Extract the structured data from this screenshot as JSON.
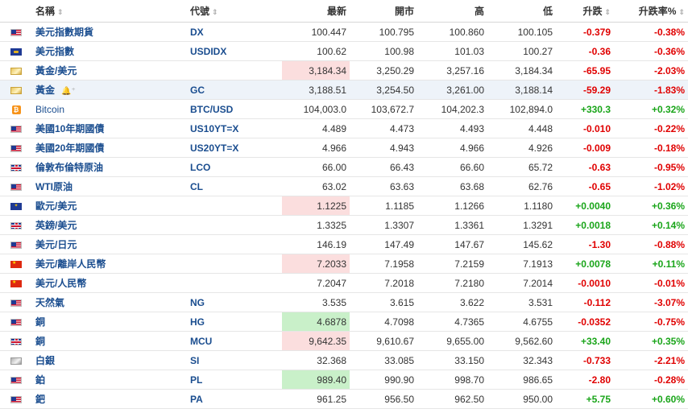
{
  "headers": {
    "name": "名稱",
    "code": "代號",
    "last": "最新",
    "open": "開市",
    "high": "高",
    "low": "低",
    "chg": "升跌",
    "chg_pct": "升跌率%"
  },
  "rows": [
    {
      "flag": "us",
      "name": "美元指數期貨",
      "code": "DX",
      "last": "100.447",
      "open": "100.795",
      "high": "100.860",
      "low": "100.105",
      "chg": "-0.379",
      "chg_pct": "-0.38%",
      "dir": "down",
      "flash": ""
    },
    {
      "flag": "dx",
      "name": "美元指數",
      "code": "USDIDX",
      "last": "100.62",
      "open": "100.98",
      "high": "101.03",
      "low": "100.27",
      "chg": "-0.36",
      "chg_pct": "-0.36%",
      "dir": "down",
      "flash": ""
    },
    {
      "flag": "gold",
      "name": "黃金/美元",
      "code": "",
      "last": "3,184.34",
      "open": "3,250.29",
      "high": "3,257.16",
      "low": "3,184.34",
      "chg": "-65.95",
      "chg_pct": "-2.03%",
      "dir": "down",
      "flash": "red"
    },
    {
      "flag": "gold",
      "name": "黃金",
      "code": "GC",
      "last": "3,188.51",
      "open": "3,254.50",
      "high": "3,261.00",
      "low": "3,188.14",
      "chg": "-59.29",
      "chg_pct": "-1.83%",
      "dir": "down",
      "flash": "",
      "hl": true,
      "bell": "🔔⁺"
    },
    {
      "flag": "btc",
      "name": "Bitcoin",
      "code": "BTC/USD",
      "last": "104,003.0",
      "open": "103,672.7",
      "high": "104,202.3",
      "low": "102,894.0",
      "chg": "+330.3",
      "chg_pct": "+0.32%",
      "dir": "up",
      "flash": "",
      "plain": true
    },
    {
      "flag": "us",
      "name": "美國10年期國債",
      "code": "US10YT=X",
      "last": "4.489",
      "open": "4.473",
      "high": "4.493",
      "low": "4.448",
      "chg": "-0.010",
      "chg_pct": "-0.22%",
      "dir": "down",
      "flash": ""
    },
    {
      "flag": "us",
      "name": "美國20年期國債",
      "code": "US20YT=X",
      "last": "4.966",
      "open": "4.943",
      "high": "4.966",
      "low": "4.926",
      "chg": "-0.009",
      "chg_pct": "-0.18%",
      "dir": "down",
      "flash": ""
    },
    {
      "flag": "uk",
      "name": "倫敦布倫特原油",
      "code": "LCO",
      "last": "66.00",
      "open": "66.43",
      "high": "66.60",
      "low": "65.72",
      "chg": "-0.63",
      "chg_pct": "-0.95%",
      "dir": "down",
      "flash": ""
    },
    {
      "flag": "us",
      "name": "WTI原油",
      "code": "CL",
      "last": "63.02",
      "open": "63.63",
      "high": "63.68",
      "low": "62.76",
      "chg": "-0.65",
      "chg_pct": "-1.02%",
      "dir": "down",
      "flash": ""
    },
    {
      "flag": "eu",
      "name": "歐元/美元",
      "code": "",
      "last": "1.1225",
      "open": "1.1185",
      "high": "1.1266",
      "low": "1.1180",
      "chg": "+0.0040",
      "chg_pct": "+0.36%",
      "dir": "up",
      "flash": "red"
    },
    {
      "flag": "uk",
      "name": "英鎊/美元",
      "code": "",
      "last": "1.3325",
      "open": "1.3307",
      "high": "1.3361",
      "low": "1.3291",
      "chg": "+0.0018",
      "chg_pct": "+0.14%",
      "dir": "up",
      "flash": ""
    },
    {
      "flag": "us",
      "name": "美元/日元",
      "code": "",
      "last": "146.19",
      "open": "147.49",
      "high": "147.67",
      "low": "145.62",
      "chg": "-1.30",
      "chg_pct": "-0.88%",
      "dir": "down",
      "flash": ""
    },
    {
      "flag": "cn",
      "name": "美元/離岸人民幣",
      "code": "",
      "last": "7.2033",
      "open": "7.1958",
      "high": "7.2159",
      "low": "7.1913",
      "chg": "+0.0078",
      "chg_pct": "+0.11%",
      "dir": "up",
      "flash": "red"
    },
    {
      "flag": "cn",
      "name": "美元/人民幣",
      "code": "",
      "last": "7.2047",
      "open": "7.2018",
      "high": "7.2180",
      "low": "7.2014",
      "chg": "-0.0010",
      "chg_pct": "-0.01%",
      "dir": "down",
      "flash": ""
    },
    {
      "flag": "us",
      "name": "天然氣",
      "code": "NG",
      "last": "3.535",
      "open": "3.615",
      "high": "3.622",
      "low": "3.531",
      "chg": "-0.112",
      "chg_pct": "-3.07%",
      "dir": "down",
      "flash": ""
    },
    {
      "flag": "us",
      "name": "銅",
      "code": "HG",
      "last": "4.6878",
      "open": "4.7098",
      "high": "4.7365",
      "low": "4.6755",
      "chg": "-0.0352",
      "chg_pct": "-0.75%",
      "dir": "down",
      "flash": "green"
    },
    {
      "flag": "uk",
      "name": "銅",
      "code": "MCU",
      "last": "9,642.35",
      "open": "9,610.67",
      "high": "9,655.00",
      "low": "9,562.60",
      "chg": "+33.40",
      "chg_pct": "+0.35%",
      "dir": "up",
      "flash": "red"
    },
    {
      "flag": "silver",
      "name": "白銀",
      "code": "SI",
      "last": "32.368",
      "open": "33.085",
      "high": "33.150",
      "low": "32.343",
      "chg": "-0.733",
      "chg_pct": "-2.21%",
      "dir": "down",
      "flash": ""
    },
    {
      "flag": "us",
      "name": "鉑",
      "code": "PL",
      "last": "989.40",
      "open": "990.90",
      "high": "998.70",
      "low": "986.65",
      "chg": "-2.80",
      "chg_pct": "-0.28%",
      "dir": "down",
      "flash": "green"
    },
    {
      "flag": "us",
      "name": "鈀",
      "code": "PA",
      "last": "961.25",
      "open": "956.50",
      "high": "962.50",
      "low": "950.00",
      "chg": "+5.75",
      "chg_pct": "+0.60%",
      "dir": "up",
      "flash": ""
    }
  ]
}
